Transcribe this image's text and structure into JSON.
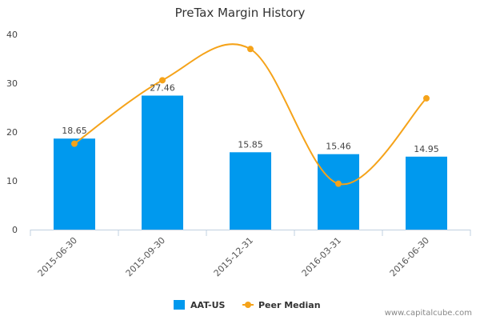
{
  "chart_data": {
    "type": "bar",
    "title": "PreTax Margin History",
    "categories": [
      "2015-06-30",
      "2015-09-30",
      "2015-12-31",
      "2016-03-31",
      "2016-06-30"
    ],
    "series": [
      {
        "name": "AAT-US",
        "type": "bar",
        "color": "#0099ee",
        "values": [
          18.65,
          27.46,
          15.85,
          15.46,
          14.95
        ]
      },
      {
        "name": "Peer Median",
        "type": "line",
        "color": "#f5a31a",
        "values": [
          17.6,
          30.6,
          37.0,
          9.4,
          26.9
        ]
      }
    ],
    "data_labels": [
      "18.65",
      "27.46",
      "15.85",
      "15.46",
      "14.95"
    ],
    "y_ticks": [
      0,
      10,
      20,
      30,
      40
    ],
    "ylim": [
      0,
      40
    ],
    "grid": false,
    "legend_position": "bottom"
  },
  "watermark": "www.capitalcube.com"
}
